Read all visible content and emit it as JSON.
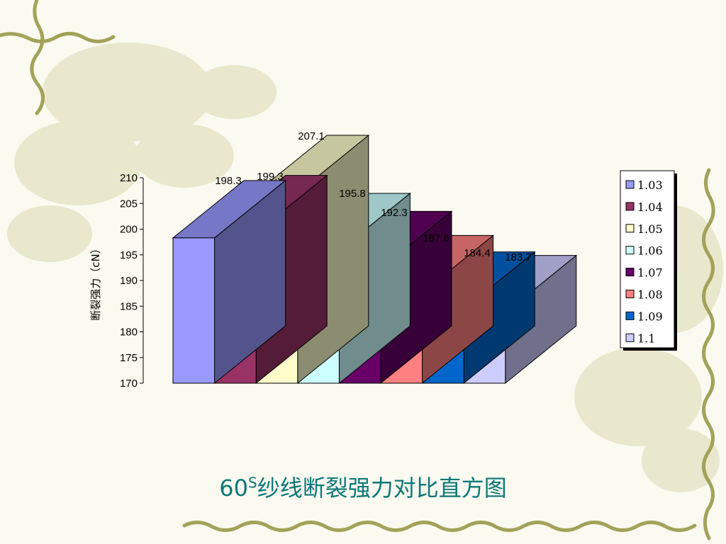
{
  "slide": {
    "title_main": "60",
    "title_sup": "S",
    "title_rest": "纱线断裂强力对比直方图"
  },
  "chart_data": {
    "type": "bar",
    "categories": [
      "1.03",
      "1.04",
      "1.05",
      "1.06",
      "1.07",
      "1.08",
      "1.09",
      "1.1"
    ],
    "values": [
      198.3,
      199.3,
      207.1,
      195.8,
      192.3,
      187.6,
      184.4,
      183.7
    ],
    "value_labels": [
      "198.3",
      "199.3",
      "207.1",
      "195.8",
      "192.3",
      "187.6",
      "184.4",
      "183.7"
    ],
    "ylabel": "断裂强力（cN）",
    "ylim": [
      170,
      210
    ],
    "yticks": [
      "170",
      "175",
      "180",
      "185",
      "190",
      "195",
      "200",
      "205",
      "210"
    ],
    "ytick_values": [
      170,
      175,
      180,
      185,
      190,
      195,
      200,
      205,
      210
    ],
    "legend": [
      "1.03",
      "1.04",
      "1.05",
      "1.06",
      "1.07",
      "1.08",
      "1.09",
      "1.1"
    ],
    "legend_position": "right",
    "colors": [
      "#9999ff",
      "#993366",
      "#ffffcc",
      "#ccffff",
      "#660066",
      "#ff8080",
      "#0066cc",
      "#ccccff"
    ],
    "style": "3d-columns",
    "grid": false
  }
}
